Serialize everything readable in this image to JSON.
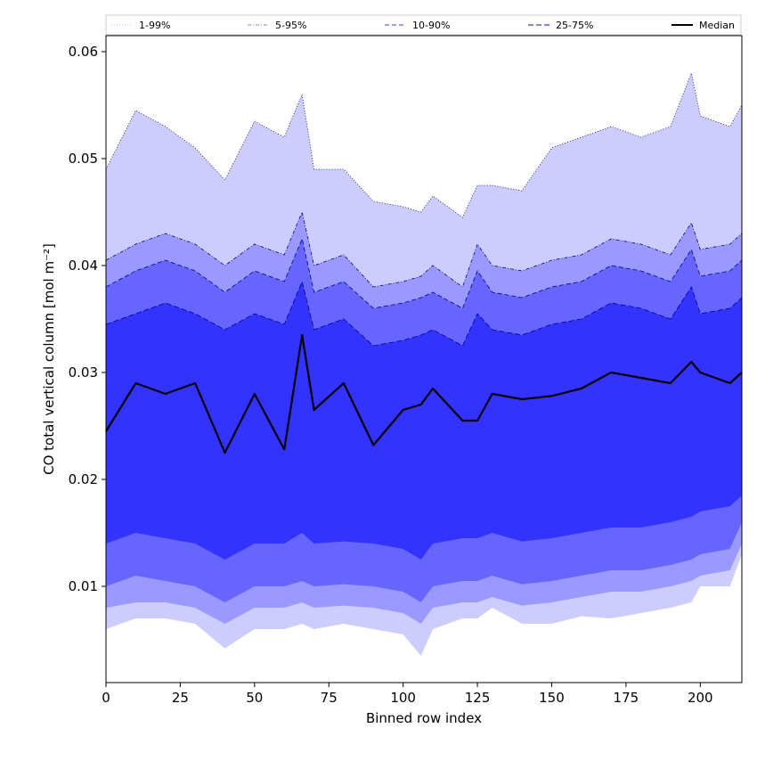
{
  "chart_data": {
    "type": "area",
    "xlabel": "Binned row index",
    "ylabel": "CO total vertical column [mol m⁻²]",
    "xlim": [
      0,
      214
    ],
    "ylim": [
      0.001,
      0.0615
    ],
    "xticks": [
      0,
      25,
      50,
      75,
      100,
      125,
      150,
      175,
      200
    ],
    "xtick_labels": [
      "0",
      "25",
      "50",
      "75",
      "100",
      "125",
      "150",
      "175",
      "200"
    ],
    "yticks": [
      0.01,
      0.02,
      0.03,
      0.04,
      0.05,
      0.06
    ],
    "ytick_labels": [
      "0.01",
      "0.02",
      "0.03",
      "0.04",
      "0.05",
      "0.06"
    ],
    "grid": false,
    "legend_position": "top",
    "x": [
      0,
      10,
      20,
      30,
      40,
      50,
      60,
      66,
      70,
      80,
      90,
      100,
      106,
      110,
      120,
      125,
      130,
      140,
      150,
      160,
      170,
      180,
      190,
      197,
      200,
      210,
      214
    ],
    "series": [
      {
        "name": "Median",
        "color": "#000000",
        "values": [
          0.0245,
          0.029,
          0.028,
          0.029,
          0.0225,
          0.028,
          0.0228,
          0.0335,
          0.0265,
          0.029,
          0.0232,
          0.0265,
          0.027,
          0.0285,
          0.0255,
          0.0255,
          0.028,
          0.0275,
          0.0278,
          0.0285,
          0.03,
          0.0295,
          0.029,
          0.031,
          0.03,
          0.029,
          0.03
        ]
      }
    ],
    "bands": [
      {
        "name": "1-99%",
        "color": "#ccccff",
        "lower": [
          0.006,
          0.007,
          0.007,
          0.0065,
          0.0042,
          0.006,
          0.006,
          0.0065,
          0.006,
          0.0065,
          0.006,
          0.0055,
          0.0035,
          0.006,
          0.007,
          0.007,
          0.008,
          0.0065,
          0.0065,
          0.0072,
          0.007,
          0.0075,
          0.008,
          0.0085,
          0.01,
          0.01,
          0.013
        ],
        "upper": [
          0.049,
          0.0545,
          0.053,
          0.051,
          0.048,
          0.0535,
          0.052,
          0.056,
          0.049,
          0.049,
          0.046,
          0.0455,
          0.045,
          0.0465,
          0.0445,
          0.0475,
          0.0475,
          0.047,
          0.051,
          0.052,
          0.053,
          0.052,
          0.053,
          0.058,
          0.054,
          0.053,
          0.055
        ]
      },
      {
        "name": "5-95%",
        "color": "#9999ff",
        "lower": [
          0.008,
          0.0085,
          0.0085,
          0.008,
          0.0065,
          0.008,
          0.008,
          0.0085,
          0.008,
          0.0082,
          0.008,
          0.0075,
          0.0065,
          0.008,
          0.0085,
          0.0085,
          0.009,
          0.0082,
          0.0085,
          0.009,
          0.0095,
          0.0095,
          0.01,
          0.0105,
          0.011,
          0.0115,
          0.014
        ],
        "upper": [
          0.0405,
          0.042,
          0.043,
          0.042,
          0.04,
          0.042,
          0.041,
          0.045,
          0.04,
          0.041,
          0.038,
          0.0385,
          0.039,
          0.04,
          0.038,
          0.042,
          0.04,
          0.0395,
          0.0405,
          0.041,
          0.0425,
          0.042,
          0.041,
          0.044,
          0.0415,
          0.042,
          0.043
        ]
      },
      {
        "name": "10-90%",
        "color": "#6666ff",
        "lower": [
          0.01,
          0.011,
          0.0105,
          0.01,
          0.0085,
          0.01,
          0.01,
          0.0105,
          0.01,
          0.0102,
          0.01,
          0.0095,
          0.0085,
          0.01,
          0.0105,
          0.0105,
          0.011,
          0.0102,
          0.0105,
          0.011,
          0.0115,
          0.0115,
          0.012,
          0.0125,
          0.013,
          0.0135,
          0.016
        ],
        "upper": [
          0.038,
          0.0395,
          0.0405,
          0.0395,
          0.0375,
          0.0395,
          0.0385,
          0.0425,
          0.0375,
          0.0385,
          0.036,
          0.0365,
          0.037,
          0.0375,
          0.036,
          0.0395,
          0.0375,
          0.037,
          0.038,
          0.0385,
          0.04,
          0.0395,
          0.0385,
          0.0415,
          0.039,
          0.0395,
          0.0405
        ]
      },
      {
        "name": "25-75%",
        "color": "#3333ff",
        "lower": [
          0.014,
          0.015,
          0.0145,
          0.014,
          0.0125,
          0.014,
          0.014,
          0.015,
          0.014,
          0.0142,
          0.014,
          0.0135,
          0.0125,
          0.014,
          0.0145,
          0.0145,
          0.015,
          0.0142,
          0.0145,
          0.015,
          0.0155,
          0.0155,
          0.016,
          0.0165,
          0.017,
          0.0175,
          0.0185
        ],
        "upper": [
          0.0345,
          0.0355,
          0.0365,
          0.0355,
          0.034,
          0.0355,
          0.0345,
          0.0385,
          0.034,
          0.035,
          0.0325,
          0.033,
          0.0335,
          0.034,
          0.0325,
          0.0355,
          0.034,
          0.0335,
          0.0345,
          0.035,
          0.0365,
          0.036,
          0.035,
          0.038,
          0.0355,
          0.036,
          0.037
        ]
      }
    ],
    "legend": [
      {
        "label": "1-99%",
        "color": "#ccccff",
        "style": "dotted"
      },
      {
        "label": "5-95%",
        "color": "#9999ff",
        "style": "dashdot"
      },
      {
        "label": "10-90%",
        "color": "#6666ff",
        "style": "dashed"
      },
      {
        "label": "25-75%",
        "color": "#3333ff",
        "style": "dashed"
      },
      {
        "label": "Median",
        "color": "#000000",
        "style": "solid"
      }
    ]
  }
}
